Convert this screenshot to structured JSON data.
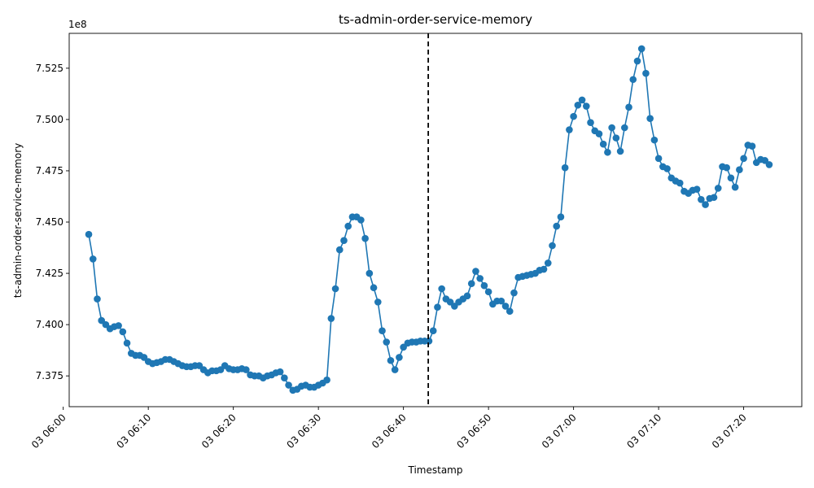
{
  "chart_data": {
    "type": "line",
    "title": "ts-admin-order-service-memory",
    "xlabel": "Timestamp",
    "ylabel": "ts-admin-order-service-memory",
    "y_offset_label": "1e8",
    "y_scale_factor": 100000000,
    "grid": false,
    "color": "#1f77b4",
    "xlim": [
      "2024-01-03T06:00:42",
      "2024-01-03T07:26:50"
    ],
    "ylim": [
      736000000,
      754200000
    ],
    "x_ticks": [
      {
        "t": "2024-01-03T06:00:00",
        "label": "03 06:00"
      },
      {
        "t": "2024-01-03T06:10:00",
        "label": "03 06:10"
      },
      {
        "t": "2024-01-03T06:20:00",
        "label": "03 06:20"
      },
      {
        "t": "2024-01-03T06:30:00",
        "label": "03 06:30"
      },
      {
        "t": "2024-01-03T06:40:00",
        "label": "03 06:40"
      },
      {
        "t": "2024-01-03T06:50:00",
        "label": "03 06:50"
      },
      {
        "t": "2024-01-03T07:00:00",
        "label": "03 07:00"
      },
      {
        "t": "2024-01-03T07:10:00",
        "label": "03 07:10"
      },
      {
        "t": "2024-01-03T07:20:00",
        "label": "03 07:20"
      }
    ],
    "y_ticks": [
      {
        "v": 737500000,
        "label": "7.375"
      },
      {
        "v": 740000000,
        "label": "7.400"
      },
      {
        "v": 742500000,
        "label": "7.425"
      },
      {
        "v": 745000000,
        "label": "7.450"
      },
      {
        "v": 747500000,
        "label": "7.475"
      },
      {
        "v": 750000000,
        "label": "7.500"
      },
      {
        "v": 752500000,
        "label": "7.525"
      }
    ],
    "vline": {
      "t": "2024-01-03T06:42:55",
      "style": "dashed",
      "color": "#000000"
    },
    "series": [
      {
        "x_start": "2024-01-03T06:03:00",
        "x_step_seconds": 30,
        "values": [
          744400000,
          743200000,
          741250000,
          740200000,
          740000000,
          739800000,
          739900000,
          739950000,
          739650000,
          739100000,
          738600000,
          738500000,
          738500000,
          738400000,
          738200000,
          738100000,
          738150000,
          738200000,
          738300000,
          738300000,
          738200000,
          738100000,
          738000000,
          737950000,
          737950000,
          738000000,
          738000000,
          737800000,
          737650000,
          737750000,
          737750000,
          737800000,
          738000000,
          737850000,
          737800000,
          737800000,
          737850000,
          737800000,
          737550000,
          737500000,
          737500000,
          737400000,
          737500000,
          737550000,
          737650000,
          737700000,
          737400000,
          737050000,
          736800000,
          736850000,
          737000000,
          737050000,
          736950000,
          736950000,
          737050000,
          737150000,
          737300000,
          740300000,
          741750000,
          743650000,
          744100000,
          744800000,
          745250000,
          745250000,
          745100000,
          744200000,
          742500000,
          741800000,
          741100000,
          739700000,
          739150000,
          738250000,
          737800000,
          738400000,
          738900000,
          739100000,
          739150000,
          739150000,
          739200000,
          739200000,
          739200000,
          739700000,
          740850000,
          741750000,
          741250000,
          741100000,
          740900000,
          741100000,
          741250000,
          741400000,
          742000000,
          742600000,
          742250000,
          741900000,
          741600000,
          741000000,
          741150000,
          741150000,
          740900000,
          740650000,
          741550000,
          742300000,
          742350000,
          742400000,
          742450000,
          742500000,
          742650000,
          742700000,
          743000000,
          743850000,
          744800000,
          745250000,
          747650000,
          749500000,
          750150000,
          750700000,
          750950000,
          750650000,
          749850000,
          749450000,
          749300000,
          748800000,
          748400000,
          749600000,
          749100000,
          748450000,
          749600000,
          750600000,
          751950000,
          752850000,
          753450000,
          752250000,
          750050000,
          749000000,
          748100000,
          747700000,
          747600000,
          747150000,
          747000000,
          746900000,
          746500000,
          746400000,
          746550000,
          746600000,
          746100000,
          745850000,
          746150000,
          746200000,
          746650000,
          747700000,
          747650000,
          747150000,
          746700000,
          747550000,
          748100000,
          748750000,
          748700000,
          747900000,
          748050000,
          748000000,
          747800000
        ]
      }
    ]
  }
}
